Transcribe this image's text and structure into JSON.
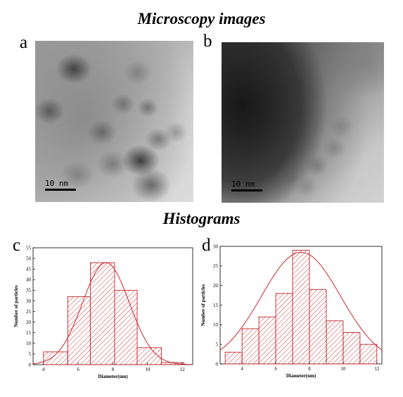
{
  "headings": {
    "microscopy": "Microscopy images",
    "histograms": "Histograms"
  },
  "panels": {
    "a": {
      "letter": "a",
      "scale_label": "10 nm"
    },
    "b": {
      "letter": "b",
      "scale_label": "10 nm"
    },
    "c": {
      "letter": "c"
    },
    "d": {
      "letter": "d"
    }
  },
  "colors": {
    "bar_edge": "#c0262b",
    "hatch": "#cc3a3f",
    "fit_line": "#c62a2f"
  },
  "chart_data": [
    {
      "id": "c",
      "type": "bar",
      "xlabel": "Diameter(nm)",
      "ylabel": "Number of particles",
      "xlim": [
        3.4,
        12.6
      ],
      "ylim": [
        0,
        55
      ],
      "xticks": [
        4,
        6,
        8,
        10,
        12
      ],
      "yticks": [
        0,
        5,
        10,
        15,
        20,
        25,
        30,
        35,
        40,
        45,
        50,
        55
      ],
      "bin_edges": [
        3.4,
        4.0,
        5.4,
        6.7,
        8.1,
        9.4,
        10.8,
        12.1
      ],
      "values": [
        0,
        6,
        32,
        48,
        35,
        8,
        1
      ],
      "fit": {
        "type": "gaussian",
        "mu": 7.6,
        "sigma": 1.35,
        "amplitude": 48
      }
    },
    {
      "id": "d",
      "type": "bar",
      "xlabel": "Diameter(nm)",
      "ylabel": "Number of particles",
      "xlim": [
        2.7,
        12.3
      ],
      "ylim": [
        0,
        30
      ],
      "xticks": [
        4,
        6,
        8,
        10,
        12
      ],
      "yticks": [
        0,
        5,
        10,
        15,
        20,
        25,
        30
      ],
      "bin_edges": [
        3,
        4,
        5,
        6,
        7,
        8,
        9,
        10,
        11,
        12
      ],
      "values": [
        3,
        9,
        12,
        18,
        29,
        19,
        11,
        8,
        5
      ],
      "fit": {
        "type": "gaussian",
        "mu": 7.5,
        "sigma": 2.35,
        "amplitude": 28.5
      }
    }
  ]
}
